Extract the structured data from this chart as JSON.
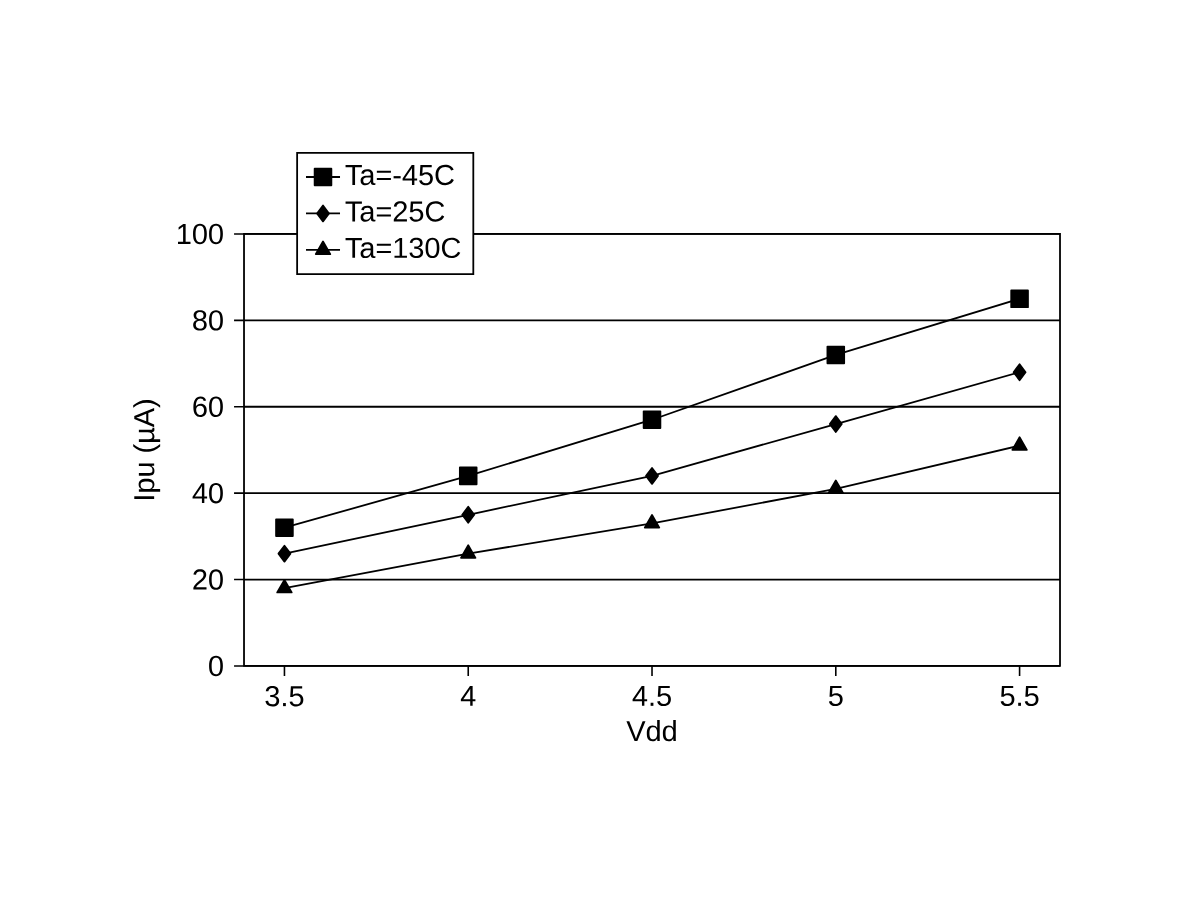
{
  "chart_data": {
    "type": "line",
    "xlabel": "Vdd",
    "ylabel": "Ipu (µA)",
    "x": [
      3.5,
      4,
      4.5,
      5,
      5.5
    ],
    "series": [
      {
        "name": "Ta=-45C",
        "color": "#000000",
        "marker": "square",
        "values": [
          32,
          44,
          57,
          72,
          85
        ]
      },
      {
        "name": "Ta=25C",
        "color": "#000000",
        "marker": "diamond",
        "values": [
          26,
          35,
          44,
          56,
          68
        ]
      },
      {
        "name": "Ta=130C",
        "color": "#000000",
        "marker": "triangle",
        "values": [
          18,
          26,
          33,
          41,
          51
        ]
      }
    ],
    "xlim": [
      3.39,
      5.61
    ],
    "xticks": [
      3.5,
      4,
      4.5,
      5,
      5.5
    ],
    "ylim": [
      0,
      100
    ],
    "yticks": [
      0,
      20,
      40,
      60,
      80,
      100
    ],
    "grid": "y",
    "legend": "top left",
    "line_style": "solid"
  }
}
